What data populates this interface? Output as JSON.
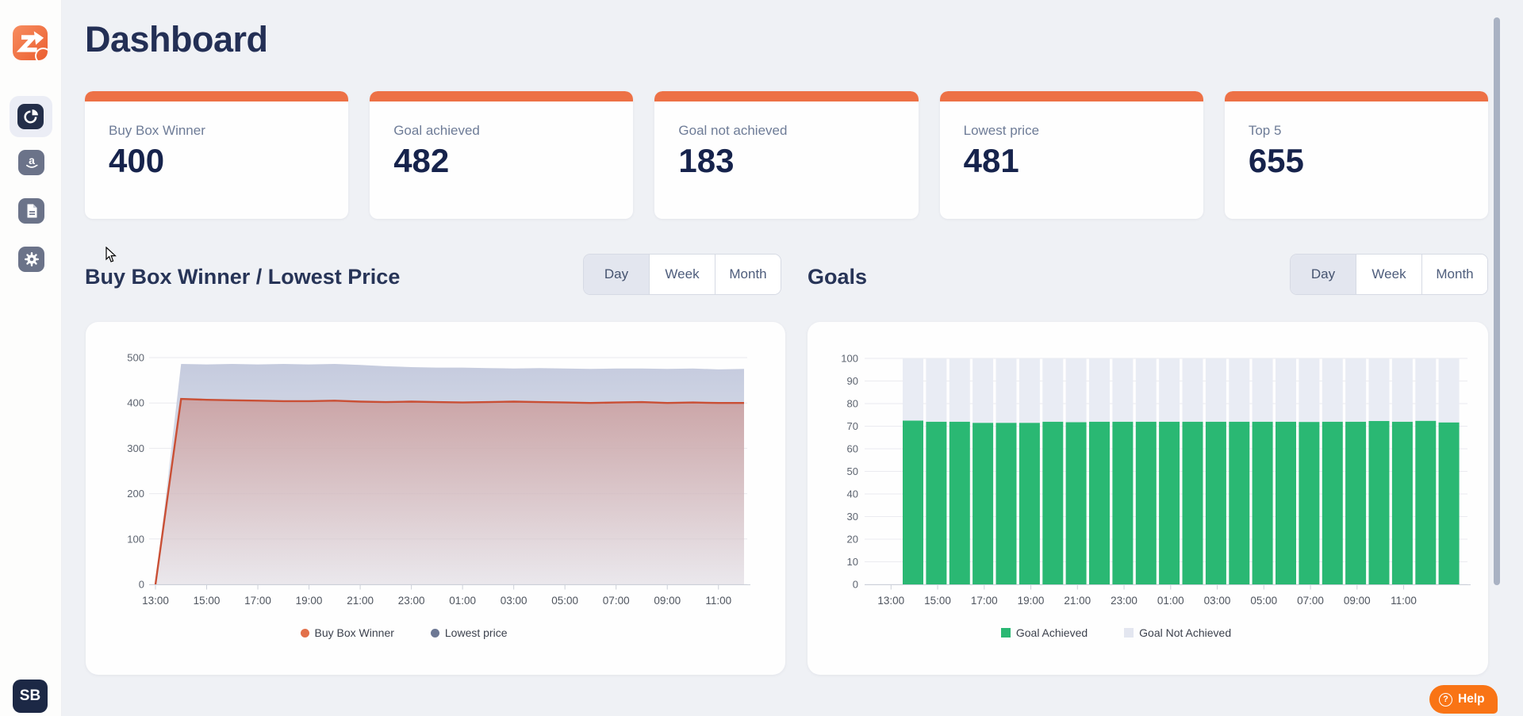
{
  "page": {
    "title": "Dashboard"
  },
  "user": {
    "initials": "SB"
  },
  "help": {
    "label": "Help",
    "icon": "question-circle-icon"
  },
  "sidebar": {
    "items": [
      {
        "name": "app-logo",
        "icon": "z-arrow-logo-icon",
        "badge": "ukraine-flag-badge"
      },
      {
        "name": "dashboard",
        "icon": "pie-chart-icon",
        "selected": true
      },
      {
        "name": "amazon",
        "icon": "amazon-icon",
        "selected": false
      },
      {
        "name": "documents",
        "icon": "document-icon",
        "selected": false
      },
      {
        "name": "settings",
        "icon": "gear-icon",
        "selected": false
      }
    ]
  },
  "stat_cards": [
    {
      "label": "Buy Box Winner",
      "value": "400"
    },
    {
      "label": "Goal achieved",
      "value": "482"
    },
    {
      "label": "Goal not achieved",
      "value": "183"
    },
    {
      "label": "Lowest price",
      "value": "481"
    },
    {
      "label": "Top 5",
      "value": "655"
    }
  ],
  "sections": [
    {
      "title": "Buy Box Winner / Lowest Price",
      "toggle": {
        "options": [
          "Day",
          "Week",
          "Month"
        ],
        "selected": "Day"
      }
    },
    {
      "title": "Goals",
      "toggle": {
        "options": [
          "Day",
          "Week",
          "Month"
        ],
        "selected": "Day"
      }
    }
  ],
  "colors": {
    "accent_orange": "#ed7146",
    "help_orange": "#f97415",
    "navy_text": "#16234c",
    "green": "#2ab873",
    "gray_bar": "#e9ecf4",
    "red_line": "#c94f35",
    "blue_fill": "#c9cfe0",
    "page_bg": "#eff1f5"
  },
  "chart_data": [
    {
      "type": "area",
      "title": "Buy Box Winner / Lowest Price",
      "x": [
        "13:00",
        "14:00",
        "15:00",
        "16:00",
        "17:00",
        "18:00",
        "19:00",
        "20:00",
        "21:00",
        "22:00",
        "23:00",
        "00:00",
        "01:00",
        "02:00",
        "03:00",
        "04:00",
        "05:00",
        "06:00",
        "07:00",
        "08:00",
        "09:00",
        "10:00",
        "11:00",
        "12:00"
      ],
      "x_tick_labels": [
        "13:00",
        "15:00",
        "17:00",
        "19:00",
        "21:00",
        "23:00",
        "01:00",
        "03:00",
        "05:00",
        "07:00",
        "09:00",
        "11:00"
      ],
      "ylim": [
        0,
        500
      ],
      "yticks": [
        0,
        100,
        200,
        300,
        400,
        500
      ],
      "grid": true,
      "legend_position": "bottom",
      "legend_shape": "circle",
      "series": [
        {
          "name": "Buy Box Winner",
          "legend_color": "#e2704a",
          "stroke": "#c94f35",
          "values": [
            0,
            409,
            407,
            406,
            405,
            404,
            404,
            405,
            403,
            402,
            403,
            402,
            401,
            402,
            403,
            402,
            401,
            400,
            401,
            402,
            400,
            401,
            400,
            400
          ]
        },
        {
          "name": "Lowest price",
          "legend_color": "#6d7894",
          "stroke": "none",
          "values": [
            0,
            486,
            485,
            486,
            485,
            486,
            485,
            486,
            484,
            481,
            479,
            478,
            478,
            477,
            476,
            477,
            476,
            475,
            476,
            476,
            475,
            476,
            474,
            475
          ]
        }
      ]
    },
    {
      "type": "stacked-bar",
      "title": "Goals",
      "x": [
        "13:00",
        "14:00",
        "15:00",
        "16:00",
        "17:00",
        "18:00",
        "19:00",
        "20:00",
        "21:00",
        "22:00",
        "23:00",
        "00:00",
        "01:00",
        "02:00",
        "03:00",
        "04:00",
        "05:00",
        "06:00",
        "07:00",
        "08:00",
        "09:00",
        "10:00",
        "11:00",
        "12:00"
      ],
      "x_tick_labels": [
        "13:00",
        "15:00",
        "17:00",
        "19:00",
        "21:00",
        "23:00",
        "01:00",
        "03:00",
        "05:00",
        "07:00",
        "09:00",
        "11:00"
      ],
      "ylim": [
        0,
        100
      ],
      "yticks": [
        0,
        10,
        20,
        30,
        40,
        50,
        60,
        70,
        80,
        90,
        100
      ],
      "stack_total": 100,
      "grid": true,
      "legend_position": "bottom",
      "legend_shape": "square",
      "series": [
        {
          "name": "Goal Achieved",
          "color": "#2ab873",
          "legend_color": "#2ab873",
          "values": [
            72.5,
            72,
            72,
            71.5,
            71.5,
            71.5,
            72,
            71.8,
            72,
            72,
            72,
            72,
            72,
            72,
            72,
            72,
            72,
            71.9,
            72,
            72,
            72.3,
            72,
            72.4,
            71.7
          ]
        },
        {
          "name": "Goal Not Achieved",
          "color": "#e9ecf4",
          "legend_color": "#e3e6f0",
          "values": [
            27.5,
            28,
            28,
            28.5,
            28.5,
            28.5,
            28,
            28.2,
            28,
            28,
            28,
            28,
            28,
            28,
            28,
            28,
            28,
            28.1,
            28,
            28,
            27.7,
            28,
            27.6,
            28.3
          ]
        }
      ]
    }
  ]
}
